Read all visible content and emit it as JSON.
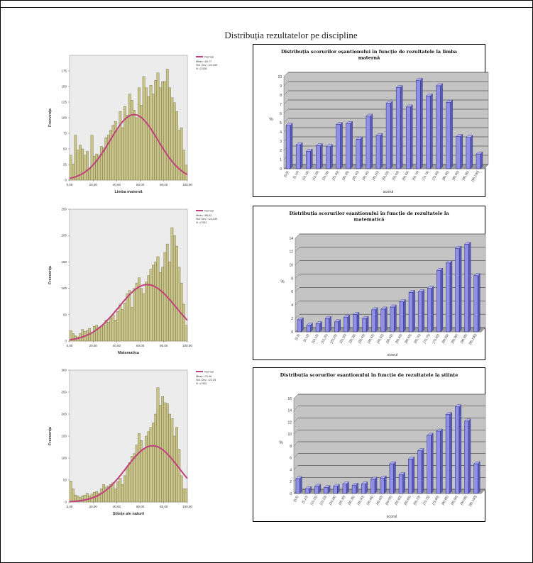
{
  "page_title": "Distribuția rezultatelor pe discipline",
  "colors": {
    "hist_bar": "#c8c48a",
    "hist_bar_stroke": "#6e6a3c",
    "hist_bg": "#ececec",
    "normal_curve": "#c0407e",
    "col_bar": "#8f8fe6",
    "col_bar_stroke": "#2a2a7a",
    "col_bg": "#c4c4c4"
  },
  "legend": {
    "normal_label": "Normal"
  },
  "chart_data": [
    {
      "type": "bar",
      "subtype": "histogram",
      "xlabel": "Limba maternă",
      "ylabel": "Frecvența",
      "xlim": [
        0,
        100
      ],
      "ylim": [
        0,
        200
      ],
      "x_ticks": [
        "0,00",
        "20,00",
        "40,00",
        "60,00",
        "80,00",
        "100,00"
      ],
      "y_ticks": [
        "0",
        "25",
        "50",
        "75",
        "100",
        "125",
        "150",
        "175"
      ],
      "legend_stats": [
        "Mean =54,77",
        "Std. Dev. =20,349",
        "N =2.538"
      ],
      "values": [
        40,
        26,
        72,
        48,
        56,
        50,
        40,
        46,
        18,
        72,
        38,
        42,
        40,
        54,
        52,
        68,
        72,
        80,
        88,
        94,
        80,
        110,
        84,
        118,
        104,
        138,
        128,
        112,
        100,
        148,
        120,
        166,
        148,
        134,
        152,
        138,
        160,
        172,
        148,
        158,
        158,
        178,
        148,
        132,
        124,
        110,
        80,
        84,
        48,
        24
      ],
      "curve": {
        "mean": 54.77,
        "sd": 20.349,
        "peak": 105
      }
    },
    {
      "type": "bar",
      "title": "Distribuția scorurilor eșantionului în funcție de rezultatele la limba maternă",
      "xlabel": "scorul",
      "ylabel": "%",
      "ylim": [
        0,
        10
      ],
      "y_ticks": [
        "0",
        "1",
        "2",
        "3",
        "4",
        "5",
        "6",
        "7",
        "8",
        "9",
        "10"
      ],
      "categories": [
        "[0,5)",
        "[5,10)",
        "[10,15)",
        "[15,20)",
        "[20,25)",
        "[25,30)",
        "[30,35)",
        "[35,40)",
        "[40,45)",
        "[45,50)",
        "[50,55)",
        "[55,60)",
        "[60,65)",
        "[65,70)",
        "[70,75)",
        "[75,80)",
        "[80,85)",
        "[85,90)",
        "[90,95)",
        "[95,100]"
      ],
      "values": [
        4.7,
        2.6,
        1.9,
        2.5,
        2.4,
        4.8,
        4.9,
        3.2,
        5.7,
        3.6,
        7.1,
        8.8,
        6.7,
        9.6,
        7.9,
        9.0,
        7.2,
        3.5,
        3.4,
        1.6
      ]
    },
    {
      "type": "bar",
      "subtype": "histogram",
      "xlabel": "Matematica",
      "ylabel": "Frecvența",
      "xlim": [
        0,
        100
      ],
      "ylim": [
        0,
        250
      ],
      "x_ticks": [
        "0,00",
        "20,00",
        "40,00",
        "60,00",
        "80,00",
        "100,00"
      ],
      "y_ticks": [
        "0",
        "50",
        "100",
        "150",
        "200",
        "250"
      ],
      "legend_stats": [
        "Mean =66,02",
        "Std. Dev. =24,039",
        "N =2.532"
      ],
      "values": [
        20,
        14,
        10,
        8,
        14,
        22,
        18,
        20,
        24,
        16,
        28,
        30,
        26,
        28,
        30,
        40,
        36,
        44,
        50,
        40,
        56,
        70,
        60,
        72,
        90,
        96,
        64,
        100,
        110,
        120,
        100,
        90,
        112,
        124,
        136,
        144,
        150,
        160,
        130,
        140,
        168,
        184,
        150,
        215,
        200,
        180,
        140,
        110,
        70,
        30
      ],
      "curve": {
        "mean": 66.02,
        "sd": 24.039,
        "peak": 107
      }
    },
    {
      "type": "bar",
      "title": "Distribuția scorurilor eșantionului în funcție de rezultatele la matematică",
      "xlabel": "scorul",
      "ylabel": "%",
      "ylim": [
        0,
        14
      ],
      "y_ticks": [
        "0",
        "2",
        "4",
        "6",
        "8",
        "10",
        "12",
        "14"
      ],
      "categories": [
        "[0,5)",
        "[5,10)",
        "[10,15)",
        "[15,20)",
        "[20,25)",
        "[25,30)",
        "[30,35)",
        "[35,40)",
        "[40,45)",
        "[45,50)",
        "[50,55)",
        "[55,60)",
        "[60,65)",
        "[65,70)",
        "[70,75)",
        "[75,80)",
        "[80,85)",
        "[85,90)",
        "[90,95)",
        "[95,100]"
      ],
      "values": [
        1.8,
        1.0,
        1.2,
        2.0,
        1.5,
        2.2,
        2.6,
        2.0,
        3.3,
        3.4,
        3.7,
        4.5,
        5.9,
        6.0,
        6.5,
        9.2,
        10.3,
        12.5,
        13.1,
        8.4
      ]
    },
    {
      "type": "bar",
      "subtype": "histogram",
      "xlabel": "Științe ale naturii",
      "ylabel": "Frecvența",
      "xlim": [
        0,
        100
      ],
      "ylim": [
        0,
        300
      ],
      "x_ticks": [
        "0,00",
        "20,00",
        "40,00",
        "60,00",
        "80,00",
        "100,00"
      ],
      "y_ticks": [
        "0",
        "50",
        "100",
        "150",
        "200",
        "250",
        "300"
      ],
      "legend_stats": [
        "Mean =70,46",
        "Std. Dev. =22,35",
        "N =2.532"
      ],
      "values": [
        48,
        30,
        16,
        14,
        10,
        14,
        16,
        20,
        14,
        18,
        22,
        24,
        20,
        30,
        40,
        34,
        36,
        40,
        44,
        30,
        46,
        54,
        40,
        60,
        80,
        90,
        104,
        110,
        130,
        156,
        140,
        120,
        150,
        160,
        170,
        180,
        200,
        260,
        220,
        240,
        226,
        224,
        200,
        190,
        150,
        170,
        120,
        60,
        30,
        30
      ],
      "curve": {
        "mean": 70.46,
        "sd": 22.35,
        "peak": 128
      }
    },
    {
      "type": "bar",
      "title": "Distribuția scorurilor eșantionului în funcție de rezultatele la științe",
      "xlabel": "scorul",
      "ylabel": "%",
      "ylim": [
        0,
        16
      ],
      "y_ticks": [
        "0",
        "2",
        "4",
        "6",
        "8",
        "10",
        "12",
        "14",
        "16"
      ],
      "categories": [
        "[0,5)",
        "[5,10)",
        "[10,15)",
        "[15,20)",
        "[20,25)",
        "[25,30)",
        "[30,35)",
        "[35,40)",
        "[40,45)",
        "[45,50)",
        "[50,55)",
        "[55,60)",
        "[60,65)",
        "[65,70)",
        "[70,75)",
        "[75,80)",
        "[80,85)",
        "[85,90)",
        "[90,95)",
        "[95,100]"
      ],
      "values": [
        2.5,
        0.8,
        1.2,
        1.0,
        1.2,
        1.6,
        1.4,
        1.6,
        2.4,
        2.6,
        5.0,
        3.2,
        5.8,
        7.2,
        9.8,
        10.5,
        13.3,
        14.6,
        12.2,
        5.0
      ]
    }
  ]
}
